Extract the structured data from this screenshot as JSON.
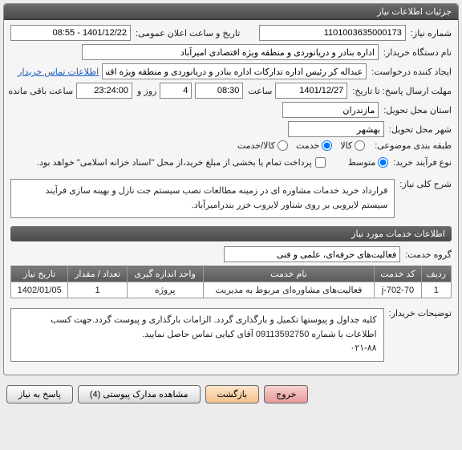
{
  "panel_title": "جزئیات اطلاعات نیاز",
  "fields": {
    "need_number": {
      "label": "شماره نیاز:",
      "value": "1101003635000173"
    },
    "announce_datetime": {
      "label": "تاریخ و ساعت اعلان عمومی:",
      "value": "1401/12/22 - 08:55"
    },
    "buyer_org": {
      "label": "نام دستگاه خریدار:",
      "value": "اداره بنادر و دریانوردی و منطقه ویژه اقتصادی امیرآباد"
    },
    "requester": {
      "label": "ایجاد کننده درخواست:",
      "value": "عبداله کر رئیس اداره تدارکات اداره بنادر و دریانوردی و منطقه ویژه اقتصادی امیرآباد"
    },
    "contact_link": "اطلاعات تماس خریدار",
    "deadline": {
      "label": "مهلت ارسال پاسخ: تا تاریخ:",
      "date": "1401/12/27",
      "time_label": "ساعت",
      "time": "08:30",
      "days_label": "4",
      "days_unit": "روز و",
      "hms": "23:24:00",
      "remain_label": "ساعت باقی مانده"
    },
    "delivery_province": {
      "label": "استان محل تحویل:",
      "value": "مازندران"
    },
    "delivery_city": {
      "label": "شهر محل تحویل:",
      "value": "بهشهر"
    },
    "subject_class": {
      "label": "طبقه بندی موضوعی:",
      "options": {
        "goods": "کالا",
        "service": "خدمت",
        "both": "کالا/خدمت"
      },
      "selected": "service"
    },
    "purchase_process": {
      "label": "نوع فرآیند خرید:",
      "options": {
        "medium": "متوسط"
      },
      "selected": "medium",
      "note_checkbox": "پرداخت تمام یا بخشی از مبلغ خرید،از محل \"اسناد خزانه اسلامی\" خواهد بود."
    }
  },
  "general_desc": {
    "label": "شرح کلی نیاز:",
    "text": "قرارداد خرید خدمات مشاوره ای در زمینه مطالعات نصب سیستم جت نازل و بهینه سازی فرآیند سیستم لایروبی بر روی شناور لایروب خزر بندرامیرآباد."
  },
  "services_header": "اطلاعات خدمات مورد نیاز",
  "service_group": {
    "label": "گروه خدمت:",
    "value": "فعالیت‌های حرفه‌ای، علمی و فنی"
  },
  "table": {
    "columns": [
      "ردیف",
      "کد خدمت",
      "نام خدمت",
      "واحد اندازه گیری",
      "تعداد / مقدار",
      "تاریخ نیاز"
    ],
    "rows": [
      [
        "1",
        "j-702-70",
        "فعالیت‌های مشاوره‌ای مربوط به مدیریت",
        "پروژه",
        "1",
        "1402/01/05"
      ]
    ]
  },
  "buyer_notes": {
    "label": "توضیحات خریدار:",
    "text": "کلیه جداول و پیوستها تکمیل و بارگذاری گردد. الزامات بارگذاری و پیوست گردد.جهت کسب اطلاعات با شماره 09113592750 آقای کیایی تماس حاصل نمایید.\n۰۲۱-۸۸"
  },
  "buttons": {
    "respond": "پاسخ به نیاز",
    "attachments": "مشاهده مدارک پیوستی (4)",
    "back": "بازگشت",
    "exit": "خروج"
  }
}
